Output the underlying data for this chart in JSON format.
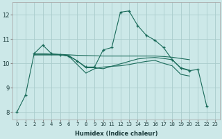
{
  "xlabel": "Humidex (Indice chaleur)",
  "bg_color": "#cce8e8",
  "grid_color": "#aacccc",
  "line_color": "#1a6b5a",
  "xlim": [
    -0.5,
    23.5
  ],
  "ylim": [
    7.7,
    12.5
  ],
  "xticks": [
    0,
    1,
    2,
    3,
    4,
    5,
    6,
    7,
    8,
    9,
    10,
    11,
    12,
    13,
    14,
    15,
    16,
    17,
    18,
    19,
    20,
    21,
    22,
    23
  ],
  "yticks": [
    8,
    9,
    10,
    11,
    12
  ],
  "marker_line": {
    "x": [
      0,
      1,
      2,
      3,
      4,
      5,
      6,
      7,
      8,
      9,
      10,
      11,
      12,
      13,
      14,
      15,
      16,
      17,
      18,
      19,
      20,
      21,
      22
    ],
    "y": [
      8.0,
      8.7,
      10.4,
      10.75,
      10.4,
      10.35,
      10.3,
      10.1,
      9.85,
      9.85,
      10.55,
      10.65,
      12.1,
      12.15,
      11.55,
      11.15,
      10.95,
      10.65,
      10.15,
      9.8,
      9.7,
      9.75,
      8.25
    ]
  },
  "flat_line": {
    "x": [
      2,
      3,
      4,
      5,
      6,
      7,
      8,
      9,
      10,
      11,
      12,
      13,
      14,
      15,
      16,
      17,
      18,
      19,
      20
    ],
    "y": [
      10.4,
      10.4,
      10.38,
      10.37,
      10.35,
      10.33,
      10.32,
      10.31,
      10.3,
      10.3,
      10.3,
      10.3,
      10.3,
      10.3,
      10.3,
      10.28,
      10.25,
      10.2,
      10.15
    ]
  },
  "down_line": {
    "x": [
      2,
      3,
      4,
      5,
      6,
      7,
      8,
      9,
      10,
      11,
      12,
      13,
      14,
      15,
      16,
      17,
      18,
      19,
      20
    ],
    "y": [
      10.35,
      10.35,
      10.35,
      10.35,
      10.32,
      10.1,
      9.82,
      9.82,
      9.78,
      9.88,
      9.98,
      10.08,
      10.18,
      10.22,
      10.24,
      10.2,
      10.15,
      9.82,
      9.72
    ]
  },
  "cross_line": {
    "x": [
      2,
      3,
      4,
      5,
      6,
      7,
      8,
      9,
      10,
      11,
      12,
      13,
      14,
      15,
      16,
      17,
      18,
      19,
      20
    ],
    "y": [
      10.35,
      10.35,
      10.35,
      10.35,
      10.3,
      9.95,
      9.6,
      9.78,
      9.85,
      9.88,
      9.9,
      9.95,
      10.02,
      10.08,
      10.12,
      10.0,
      9.9,
      9.55,
      9.48
    ]
  }
}
